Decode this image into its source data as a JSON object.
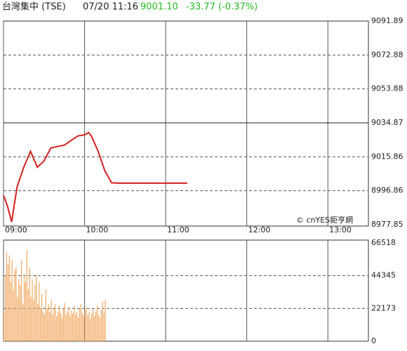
{
  "header": {
    "name": "台灣集中 (TSE)",
    "time": "07/20 11:16",
    "price": "9001.10",
    "change": "-33.77 (-0.37%)"
  },
  "chart_data": [
    {
      "type": "line",
      "annotation": "© cnYES鉅亨網",
      "color": "#d42020",
      "reference": 9034.87,
      "x": [
        "09:00",
        "09:03",
        "09:06",
        "09:10",
        "09:15",
        "09:20",
        "09:25",
        "09:30",
        "09:35",
        "09:40",
        "09:45",
        "09:50",
        "09:55",
        "10:00",
        "10:03",
        "10:05",
        "10:10",
        "10:15",
        "10:20",
        "10:25",
        "10:45",
        "11:05",
        "11:16"
      ],
      "values": [
        8994.3,
        8988,
        8979.4,
        8998.9,
        9010,
        9019,
        9010,
        9013.5,
        9020.8,
        9021.6,
        9022.4,
        9025,
        9027.5,
        9028.2,
        9029.4,
        9027.5,
        9019,
        9008,
        9001.3,
        9001.1,
        9001.1,
        9001.1,
        9001.1
      ],
      "xlim": [
        "09:00",
        "13:30"
      ],
      "xticks": [
        "09:00",
        "10:00",
        "11:00",
        "12:00",
        "13:00"
      ],
      "ylim": [
        8977.85,
        9091.89
      ],
      "yticks": [
        8977.85,
        8996.86,
        9015.86,
        9034.87,
        9053.88,
        9072.88,
        9091.89
      ]
    },
    {
      "type": "bar",
      "color": "#f0a860",
      "x": [
        "09:00",
        "09:01",
        "09:02",
        "09:03",
        "09:04",
        "09:05",
        "09:06",
        "09:07",
        "09:08",
        "09:09",
        "09:10",
        "09:11",
        "09:12",
        "09:13",
        "09:14",
        "09:15",
        "09:16",
        "09:17",
        "09:18",
        "09:19",
        "09:20",
        "09:21",
        "09:22",
        "09:23",
        "09:24",
        "09:25",
        "09:26",
        "09:27",
        "09:28",
        "09:29",
        "09:30",
        "09:31",
        "09:32",
        "09:33",
        "09:34",
        "09:35",
        "09:36",
        "09:37",
        "09:38",
        "09:39",
        "09:40",
        "09:41",
        "09:42",
        "09:43",
        "09:44",
        "09:45",
        "09:46",
        "09:47",
        "09:48",
        "09:49",
        "09:50",
        "09:51",
        "09:52",
        "09:53",
        "09:54",
        "09:55",
        "09:56",
        "09:57",
        "09:58",
        "09:59",
        "10:00",
        "10:01",
        "10:02",
        "10:03",
        "10:04",
        "10:05",
        "10:06",
        "10:07",
        "10:08",
        "10:09",
        "10:10",
        "10:11",
        "10:12",
        "10:13",
        "10:14",
        "10:15"
      ],
      "values": [
        20000,
        45000,
        60000,
        52000,
        58000,
        40000,
        55000,
        35000,
        48000,
        50000,
        30000,
        42000,
        38000,
        55000,
        25000,
        45000,
        40000,
        62000,
        35000,
        50000,
        30000,
        42000,
        28000,
        38000,
        45000,
        25000,
        40000,
        22000,
        32000,
        20000,
        18000,
        35000,
        22000,
        25000,
        20000,
        28000,
        18000,
        22000,
        25000,
        17000,
        20000,
        24000,
        19000,
        16000,
        22000,
        26000,
        18000,
        20000,
        23000,
        17000,
        21000,
        19000,
        24000,
        18000,
        20000,
        16000,
        22000,
        25000,
        19000,
        17000,
        21000,
        23000,
        18000,
        20000,
        15000,
        19000,
        22000,
        17000,
        20000,
        24000,
        18000,
        16000,
        21000,
        27000,
        19000,
        28000
      ],
      "xlim": [
        "09:00",
        "13:30"
      ],
      "ylim": [
        0,
        66518
      ],
      "yticks": [
        0,
        22173,
        44345,
        66518
      ]
    }
  ]
}
